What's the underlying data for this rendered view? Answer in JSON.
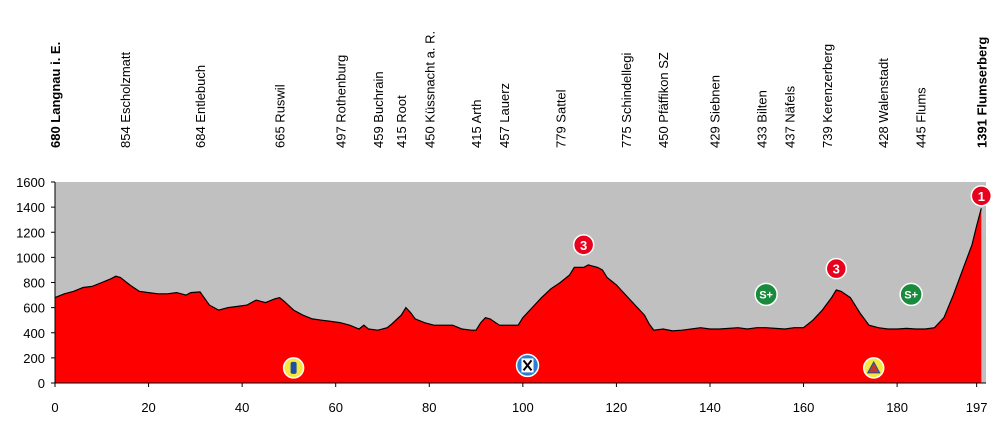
{
  "chart_data": {
    "type": "area",
    "title": "",
    "xlabel": "",
    "ylabel": "",
    "xlim": [
      0,
      199
    ],
    "ylim": [
      0,
      1600
    ],
    "grid": false,
    "x_ticks": [
      0,
      20,
      40,
      60,
      80,
      100,
      120,
      140,
      160,
      180,
      197
    ],
    "y_ticks": [
      0,
      200,
      400,
      600,
      800,
      1000,
      1200,
      1400,
      1600
    ],
    "colors": {
      "fill": "#ff0000",
      "plot_bg": "#c0c0c0",
      "climb": "#e8001c",
      "sprint": "#1a8a3c",
      "feed": "#f5e642"
    },
    "profile": [
      [
        0,
        680
      ],
      [
        2,
        710
      ],
      [
        4,
        730
      ],
      [
        6,
        760
      ],
      [
        8,
        770
      ],
      [
        10,
        800
      ],
      [
        12,
        830
      ],
      [
        13,
        850
      ],
      [
        14,
        840
      ],
      [
        16,
        780
      ],
      [
        18,
        730
      ],
      [
        20,
        720
      ],
      [
        22,
        710
      ],
      [
        24,
        710
      ],
      [
        26,
        720
      ],
      [
        28,
        700
      ],
      [
        29,
        720
      ],
      [
        31,
        725
      ],
      [
        33,
        620
      ],
      [
        35,
        580
      ],
      [
        37,
        600
      ],
      [
        39,
        610
      ],
      [
        41,
        620
      ],
      [
        43,
        660
      ],
      [
        45,
        640
      ],
      [
        47,
        670
      ],
      [
        48,
        680
      ],
      [
        49,
        650
      ],
      [
        51,
        580
      ],
      [
        53,
        540
      ],
      [
        55,
        510
      ],
      [
        57,
        500
      ],
      [
        59,
        490
      ],
      [
        61,
        480
      ],
      [
        63,
        460
      ],
      [
        65,
        430
      ],
      [
        66,
        460
      ],
      [
        67,
        430
      ],
      [
        69,
        420
      ],
      [
        71,
        440
      ],
      [
        72,
        470
      ],
      [
        74,
        540
      ],
      [
        75,
        600
      ],
      [
        76,
        560
      ],
      [
        77,
        510
      ],
      [
        79,
        480
      ],
      [
        81,
        460
      ],
      [
        83,
        460
      ],
      [
        85,
        460
      ],
      [
        87,
        430
      ],
      [
        89,
        420
      ],
      [
        90,
        420
      ],
      [
        91,
        480
      ],
      [
        92,
        520
      ],
      [
        93,
        510
      ],
      [
        95,
        460
      ],
      [
        97,
        460
      ],
      [
        99,
        460
      ],
      [
        100,
        520
      ],
      [
        102,
        600
      ],
      [
        104,
        680
      ],
      [
        106,
        750
      ],
      [
        108,
        800
      ],
      [
        110,
        860
      ],
      [
        111,
        920
      ],
      [
        113,
        920
      ],
      [
        114,
        940
      ],
      [
        115,
        930
      ],
      [
        116,
        920
      ],
      [
        117,
        900
      ],
      [
        118,
        840
      ],
      [
        120,
        780
      ],
      [
        122,
        700
      ],
      [
        124,
        620
      ],
      [
        126,
        540
      ],
      [
        127,
        470
      ],
      [
        128,
        420
      ],
      [
        130,
        430
      ],
      [
        132,
        415
      ],
      [
        134,
        420
      ],
      [
        136,
        430
      ],
      [
        138,
        440
      ],
      [
        140,
        430
      ],
      [
        142,
        430
      ],
      [
        144,
        435
      ],
      [
        146,
        440
      ],
      [
        148,
        430
      ],
      [
        150,
        440
      ],
      [
        152,
        440
      ],
      [
        154,
        435
      ],
      [
        156,
        430
      ],
      [
        158,
        440
      ],
      [
        160,
        440
      ],
      [
        162,
        500
      ],
      [
        164,
        580
      ],
      [
        166,
        680
      ],
      [
        167,
        740
      ],
      [
        168,
        730
      ],
      [
        170,
        680
      ],
      [
        172,
        560
      ],
      [
        174,
        460
      ],
      [
        176,
        440
      ],
      [
        178,
        430
      ],
      [
        180,
        430
      ],
      [
        182,
        435
      ],
      [
        184,
        430
      ],
      [
        186,
        430
      ],
      [
        188,
        440
      ],
      [
        190,
        520
      ],
      [
        192,
        700
      ],
      [
        194,
        900
      ],
      [
        196,
        1100
      ],
      [
        197,
        1250
      ],
      [
        198,
        1391
      ]
    ],
    "places": [
      {
        "km": 0,
        "label": "680 Langnau i. E.",
        "bold": true
      },
      {
        "km": 15,
        "label": "854 Escholzmatt",
        "bold": false
      },
      {
        "km": 31,
        "label": "684 Entlebuch",
        "bold": false
      },
      {
        "km": 48,
        "label": "665 Ruswil",
        "bold": false
      },
      {
        "km": 61,
        "label": "497 Rothenburg",
        "bold": false
      },
      {
        "km": 69,
        "label": "459 Buchrain",
        "bold": false
      },
      {
        "km": 74,
        "label": "415 Root",
        "bold": false
      },
      {
        "km": 80,
        "label": "450 Küssnacht a. R.",
        "bold": false
      },
      {
        "km": 90,
        "label": "415 Arth",
        "bold": false
      },
      {
        "km": 96,
        "label": "457 Lauerz",
        "bold": false
      },
      {
        "km": 108,
        "label": "779 Sattel",
        "bold": false
      },
      {
        "km": 122,
        "label": "775 Schindellegi",
        "bold": false
      },
      {
        "km": 130,
        "label": "450 Pfäffikon SZ",
        "bold": false
      },
      {
        "km": 141,
        "label": "429 Siebnen",
        "bold": false
      },
      {
        "km": 151,
        "label": "433 Bilten",
        "bold": false
      },
      {
        "km": 157,
        "label": "437 Näfels",
        "bold": false
      },
      {
        "km": 165,
        "label": "739 Kerenzerberg",
        "bold": false
      },
      {
        "km": 177,
        "label": "428 Walenstadt",
        "bold": false
      },
      {
        "km": 185,
        "label": "445 Flums",
        "bold": false
      },
      {
        "km": 198,
        "label": "1391 Flumserberg",
        "bold": true
      }
    ],
    "climbs": [
      {
        "km": 113,
        "elev": 1100,
        "category": "3"
      },
      {
        "km": 167,
        "elev": 910,
        "category": "3"
      },
      {
        "km": 198,
        "elev": 1490,
        "category": "1"
      }
    ],
    "sprints": [
      {
        "km": 152,
        "elev": 705,
        "label": "S+"
      },
      {
        "km": 183,
        "elev": 705,
        "label": "S+"
      }
    ],
    "markers": [
      {
        "km": 51,
        "elev": 120,
        "icon": "feed-zone-icon"
      },
      {
        "km": 101,
        "elev": 140,
        "icon": "intermediate-time-icon"
      },
      {
        "km": 175,
        "elev": 120,
        "icon": "king-of-mountain-icon"
      }
    ]
  }
}
